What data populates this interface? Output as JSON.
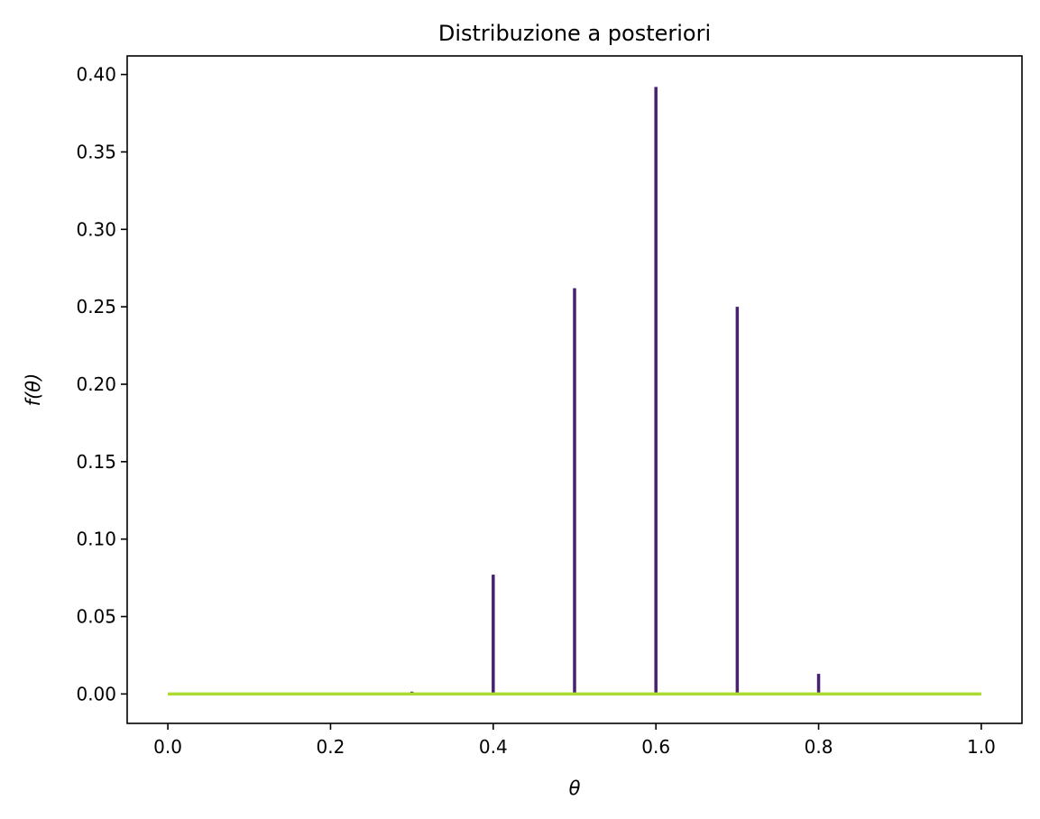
{
  "chart_data": {
    "type": "bar",
    "title": "Distribuzione a posteriori",
    "xlabel": "θ",
    "ylabel": "f(θ)",
    "xlim": [
      -0.05,
      1.05
    ],
    "ylim": [
      -0.019,
      0.412
    ],
    "x_ticks": [
      "0.0",
      "0.2",
      "0.4",
      "0.6",
      "0.8",
      "1.0"
    ],
    "x_tick_values": [
      0.0,
      0.2,
      0.4,
      0.6,
      0.8,
      1.0
    ],
    "y_ticks": [
      "0.00",
      "0.05",
      "0.10",
      "0.15",
      "0.20",
      "0.25",
      "0.30",
      "0.35",
      "0.40"
    ],
    "y_tick_values": [
      0.0,
      0.05,
      0.1,
      0.15,
      0.2,
      0.25,
      0.3,
      0.35,
      0.4
    ],
    "grid": false,
    "series": [
      {
        "kind": "stem",
        "color": "#482173",
        "x": [
          0.3,
          0.4,
          0.5,
          0.6,
          0.7,
          0.8
        ],
        "values": [
          0.0015,
          0.077,
          0.262,
          0.392,
          0.25,
          0.013
        ]
      },
      {
        "kind": "line",
        "color": "#addc30",
        "x": [
          0.0,
          1.0
        ],
        "values": [
          0.0,
          0.0
        ]
      }
    ]
  }
}
